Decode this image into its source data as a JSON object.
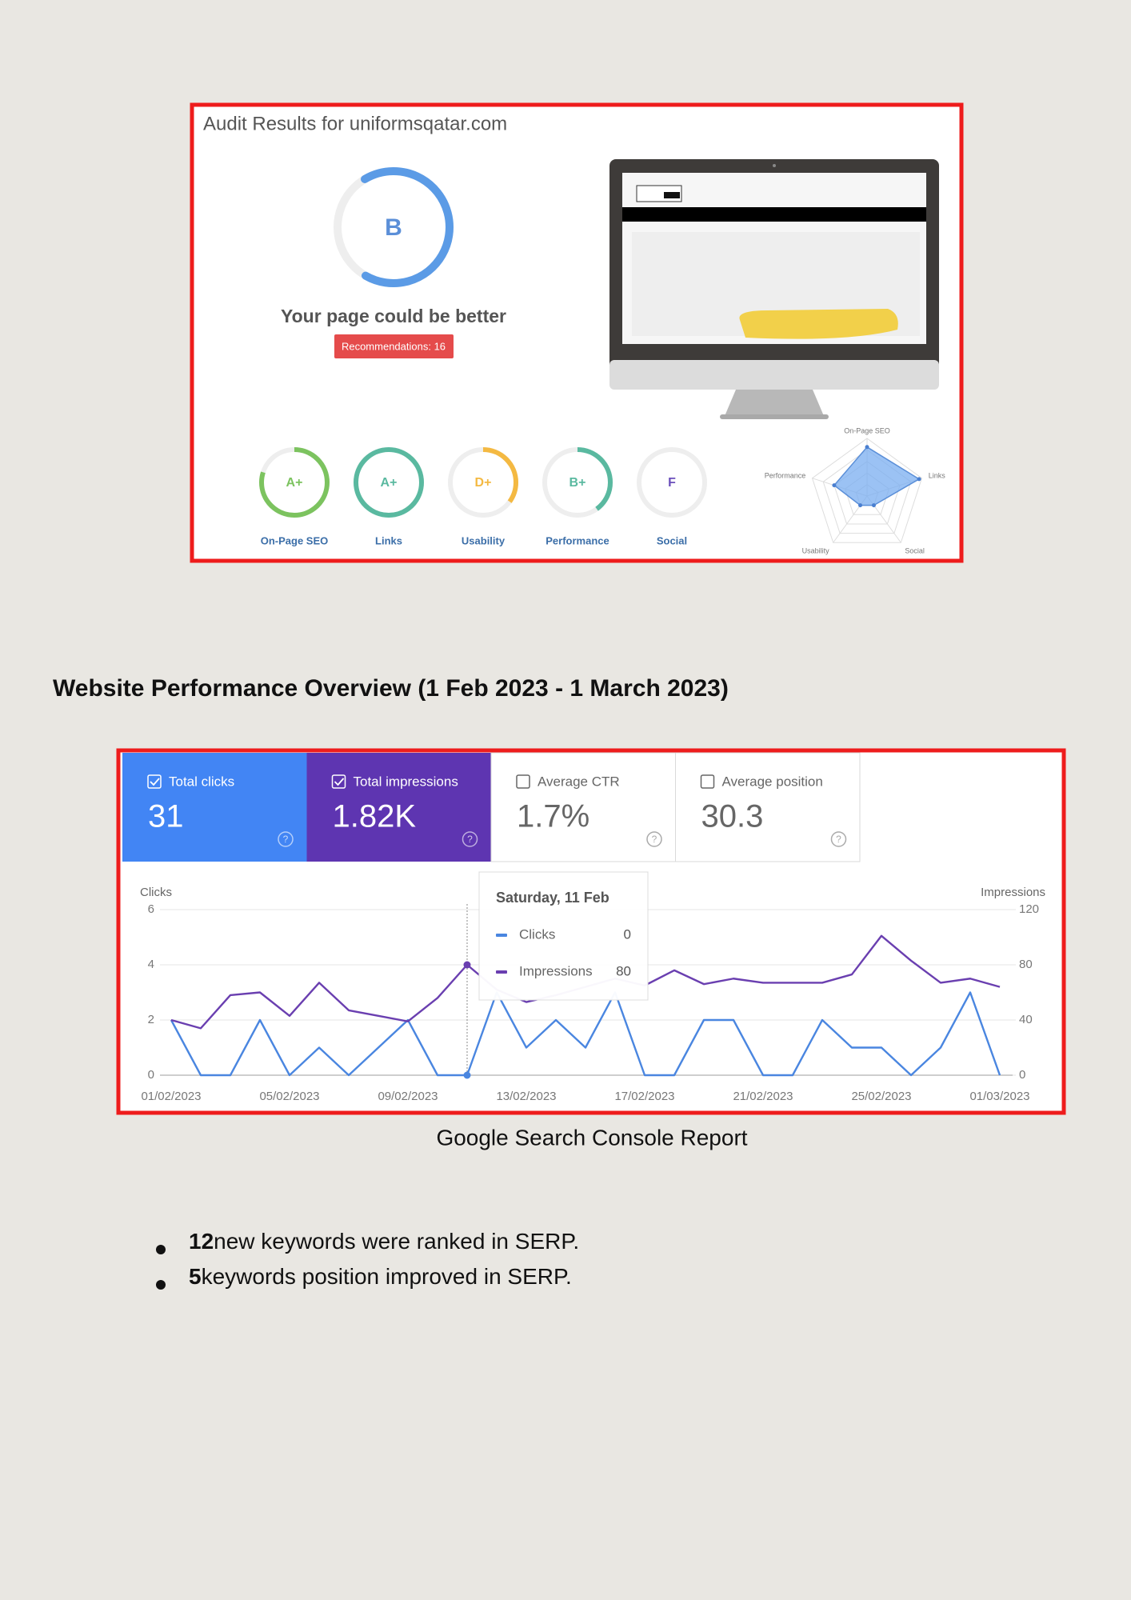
{
  "audit": {
    "title": "Audit Results for uniformsqatar.com",
    "grade": "B",
    "grade_progress": 67,
    "message": "Your page could be better",
    "recommendations": "Recommendations: 16",
    "scores": [
      {
        "label": "On-Page SEO",
        "grade": "A+",
        "progress": 80,
        "color": "#7cc35f"
      },
      {
        "label": "Links",
        "grade": "A+",
        "progress": 100,
        "color": "#5ab9a0"
      },
      {
        "label": "Usability",
        "grade": "D+",
        "progress": 35,
        "color": "#f4b942"
      },
      {
        "label": "Performance",
        "grade": "B+",
        "progress": 40,
        "color": "#5ab9a0"
      },
      {
        "label": "Social",
        "grade": "F",
        "progress": 0,
        "color": "#6b4fbb"
      }
    ],
    "radar": {
      "labels": [
        "On-Page SEO",
        "Links",
        "Social",
        "Usability",
        "Performance"
      ],
      "values": [
        85,
        95,
        20,
        20,
        60
      ],
      "max": 100,
      "color": "#7aaef0"
    }
  },
  "heading": "Website Performance Overview (1 Feb 2023 - 1 March 2023)",
  "metrics": [
    {
      "label": "Total clicks",
      "value": "31",
      "checked": true,
      "color": "#4285f4"
    },
    {
      "label": "Total impressions",
      "value": "1.82K",
      "checked": true,
      "color": "#5e35b1"
    },
    {
      "label": "Average CTR",
      "value": "1.7%",
      "checked": false,
      "color": "#ffffff"
    },
    {
      "label": "Average position",
      "value": "30.3",
      "checked": false,
      "color": "#ffffff"
    }
  ],
  "chart_data": {
    "type": "line",
    "ylabel": "Clicks",
    "y2label": "Impressions",
    "categories": [
      "01/02/2023",
      null,
      null,
      null,
      "05/02/2023",
      null,
      null,
      null,
      "09/02/2023",
      null,
      null,
      null,
      "13/02/2023",
      null,
      null,
      null,
      "17/02/2023",
      null,
      null,
      null,
      "21/02/2023",
      null,
      null,
      null,
      "25/02/2023",
      null,
      null,
      null,
      "01/03/2023"
    ],
    "series": [
      {
        "name": "Clicks",
        "color": "#4a86e0",
        "values": [
          2,
          0,
          0,
          2,
          0,
          1,
          0,
          1,
          2,
          0,
          0,
          3,
          1,
          2,
          1,
          3,
          0,
          0,
          2,
          2,
          0,
          0,
          2,
          1,
          1,
          0,
          1,
          3,
          0
        ]
      },
      {
        "name": "Impressions",
        "color": "#6a3fb0",
        "axis": "y2",
        "values": [
          40,
          34,
          58,
          60,
          43,
          67,
          47,
          43,
          39,
          56,
          80,
          62,
          53,
          58,
          64,
          70,
          65,
          76,
          66,
          70,
          67,
          67,
          67,
          73,
          101,
          83,
          67,
          70,
          64
        ]
      }
    ],
    "ylim": [
      0,
      6
    ],
    "yticks": [
      0,
      2,
      4,
      6
    ],
    "y2lim": [
      0,
      120
    ],
    "y2ticks": [
      0,
      40,
      80,
      120
    ],
    "grid": true,
    "tooltip": {
      "title": "Saturday, 11 Feb"
    }
  },
  "caption": "Google Search Console Report",
  "bullets": [
    {
      "bold": "12",
      "text": "new keywords were ranked in SERP."
    },
    {
      "bold": "5",
      "text": "keywords position improved in SERP."
    }
  ]
}
